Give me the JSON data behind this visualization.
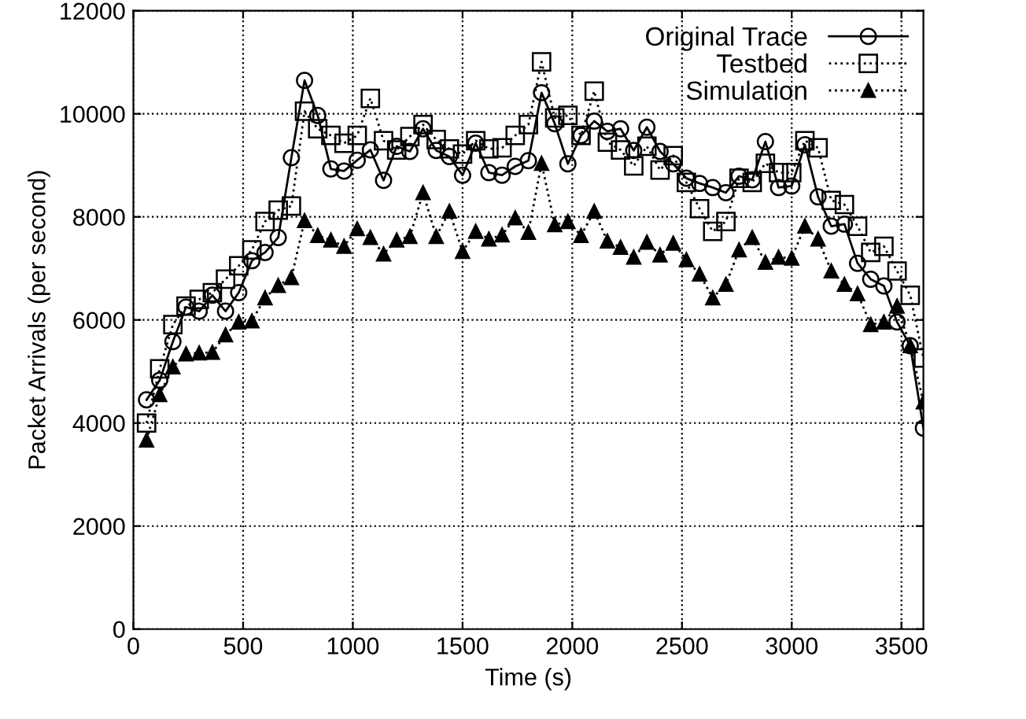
{
  "chart_data": {
    "type": "line",
    "xlabel": "Time (s)",
    "ylabel": "Packet Arrivals (per second)",
    "x": [
      60,
      120,
      180,
      240,
      300,
      360,
      420,
      480,
      540,
      600,
      660,
      720,
      780,
      840,
      900,
      960,
      1020,
      1080,
      1140,
      1200,
      1260,
      1320,
      1380,
      1440,
      1500,
      1560,
      1620,
      1680,
      1740,
      1800,
      1860,
      1920,
      1980,
      2040,
      2100,
      2160,
      2220,
      2280,
      2340,
      2400,
      2460,
      2520,
      2580,
      2640,
      2700,
      2760,
      2820,
      2880,
      2940,
      3000,
      3060,
      3120,
      3180,
      3240,
      3300,
      3360,
      3420,
      3480,
      3540,
      3600
    ],
    "series": [
      {
        "name": "Original Trace",
        "color": "#000000",
        "marker": "circle",
        "line_style": "solid",
        "values": [
          4450,
          4830,
          5580,
          6250,
          6170,
          6480,
          6170,
          6530,
          7150,
          7310,
          7600,
          9150,
          10650,
          9970,
          8930,
          8890,
          9100,
          9300,
          8710,
          9370,
          9270,
          9710,
          9290,
          9170,
          8810,
          9430,
          8860,
          8810,
          8980,
          9090,
          10410,
          9810,
          9030,
          9580,
          9860,
          9660,
          9710,
          9290,
          9740,
          9270,
          9030,
          8750,
          8650,
          8570,
          8470,
          8790,
          8720,
          9460,
          8570,
          8600,
          9400,
          8390,
          7820,
          7860,
          7100,
          6790,
          6660,
          5960,
          5500,
          3900
        ]
      },
      {
        "name": "Testbed",
        "color": "#000000",
        "marker": "square",
        "line_style": "dotted",
        "values": [
          4000,
          5050,
          5910,
          6270,
          6400,
          6530,
          6790,
          7050,
          7360,
          7910,
          8130,
          8210,
          10050,
          9710,
          9580,
          9430,
          9580,
          10300,
          9480,
          9300,
          9560,
          9790,
          9500,
          9320,
          9220,
          9480,
          9320,
          9340,
          9580,
          9790,
          11010,
          9920,
          9970,
          9580,
          10440,
          9450,
          9300,
          8990,
          9370,
          8910,
          9190,
          8670,
          8160,
          7720,
          7910,
          8750,
          8670,
          9040,
          8860,
          8860,
          9480,
          9340,
          8320,
          8240,
          7820,
          7310,
          7430,
          6950,
          6480,
          5260
        ]
      },
      {
        "name": "Simulation",
        "color": "#000000",
        "marker": "triangle",
        "line_style": "dotted",
        "values": [
          3670,
          4550,
          5090,
          5340,
          5360,
          5370,
          5710,
          5960,
          5980,
          6430,
          6670,
          6820,
          7930,
          7640,
          7550,
          7430,
          7770,
          7600,
          7280,
          7550,
          7620,
          8470,
          7620,
          8110,
          7330,
          7720,
          7570,
          7650,
          7980,
          7700,
          9040,
          7850,
          7910,
          7640,
          8110,
          7530,
          7410,
          7220,
          7510,
          7260,
          7490,
          7170,
          6890,
          6430,
          6690,
          7360,
          7600,
          7120,
          7220,
          7200,
          7820,
          7570,
          6950,
          6690,
          6510,
          5910,
          5960,
          6270,
          5500,
          4410
        ]
      }
    ],
    "xlim": [
      0,
      3600
    ],
    "ylim": [
      0,
      12000
    ],
    "xticks": [
      0,
      500,
      1000,
      1500,
      2000,
      2500,
      3000,
      3500
    ],
    "yticks": [
      0,
      2000,
      4000,
      6000,
      8000,
      10000,
      12000
    ],
    "grid": true,
    "legend": "top right"
  }
}
